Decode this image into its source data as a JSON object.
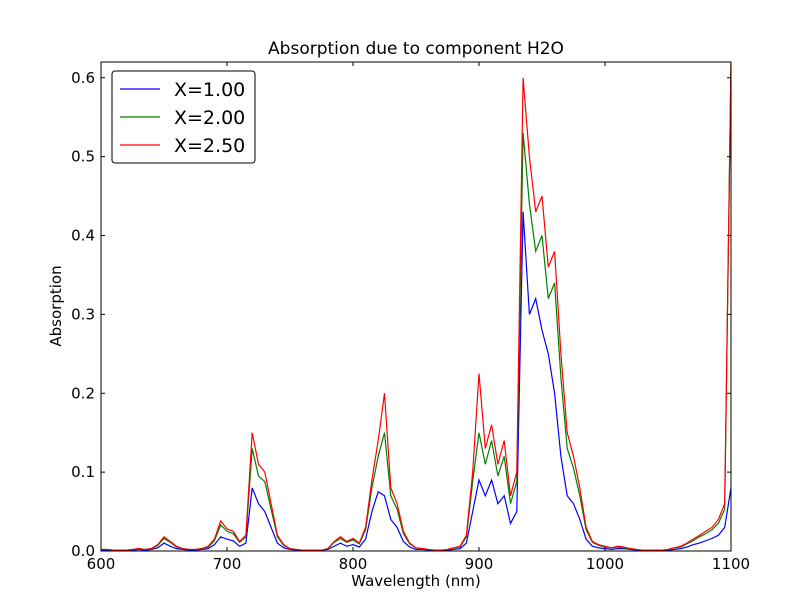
{
  "chart_data": {
    "type": "line",
    "title": "Absorption due to component H2O",
    "x_label": "Wavelength (nm)",
    "y_label": "Absorption",
    "x": [
      600,
      605,
      610,
      615,
      620,
      625,
      630,
      635,
      640,
      645,
      650,
      655,
      660,
      665,
      670,
      675,
      680,
      685,
      690,
      695,
      700,
      705,
      710,
      715,
      720,
      725,
      730,
      735,
      740,
      745,
      750,
      755,
      760,
      765,
      770,
      775,
      780,
      785,
      790,
      795,
      800,
      805,
      810,
      815,
      820,
      825,
      830,
      835,
      840,
      845,
      850,
      855,
      860,
      865,
      870,
      875,
      880,
      885,
      890,
      895,
      900,
      905,
      910,
      915,
      920,
      925,
      930,
      935,
      940,
      945,
      950,
      955,
      960,
      965,
      970,
      975,
      980,
      985,
      990,
      995,
      1000,
      1005,
      1010,
      1015,
      1020,
      1025,
      1030,
      1035,
      1040,
      1045,
      1050,
      1055,
      1060,
      1065,
      1070,
      1075,
      1080,
      1085,
      1090,
      1095,
      1100
    ],
    "series": [
      {
        "name": "X=1.00",
        "color": "#0000ff",
        "values": [
          0.001,
          0.001,
          0.001,
          0.001,
          0.001,
          0.001,
          0.002,
          0.001,
          0.002,
          0.004,
          0.01,
          0.006,
          0.003,
          0.002,
          0.001,
          0.001,
          0.002,
          0.003,
          0.008,
          0.018,
          0.015,
          0.013,
          0.006,
          0.01,
          0.08,
          0.06,
          0.05,
          0.03,
          0.01,
          0.004,
          0.002,
          0.001,
          0.001,
          0.001,
          0.001,
          0.001,
          0.002,
          0.006,
          0.01,
          0.006,
          0.008,
          0.005,
          0.015,
          0.05,
          0.075,
          0.07,
          0.04,
          0.03,
          0.012,
          0.005,
          0.002,
          0.002,
          0.001,
          0.001,
          0.001,
          0.001,
          0.002,
          0.003,
          0.01,
          0.05,
          0.09,
          0.07,
          0.09,
          0.06,
          0.07,
          0.035,
          0.05,
          0.43,
          0.3,
          0.32,
          0.28,
          0.25,
          0.2,
          0.12,
          0.07,
          0.06,
          0.04,
          0.015,
          0.006,
          0.004,
          0.003,
          0.002,
          0.003,
          0.003,
          0.002,
          0.001,
          0.001,
          0.001,
          0.001,
          0.001,
          0.001,
          0.002,
          0.003,
          0.005,
          0.008,
          0.01,
          0.013,
          0.016,
          0.02,
          0.03,
          0.08
        ]
      },
      {
        "name": "X=2.00",
        "color": "#008000",
        "values": [
          0.002,
          0.002,
          0.001,
          0.001,
          0.001,
          0.002,
          0.003,
          0.002,
          0.003,
          0.007,
          0.016,
          0.011,
          0.005,
          0.003,
          0.002,
          0.002,
          0.003,
          0.005,
          0.013,
          0.033,
          0.025,
          0.022,
          0.011,
          0.018,
          0.13,
          0.095,
          0.088,
          0.053,
          0.018,
          0.007,
          0.003,
          0.002,
          0.001,
          0.001,
          0.001,
          0.001,
          0.003,
          0.011,
          0.016,
          0.011,
          0.014,
          0.009,
          0.027,
          0.08,
          0.12,
          0.15,
          0.07,
          0.053,
          0.022,
          0.009,
          0.004,
          0.003,
          0.002,
          0.001,
          0.001,
          0.002,
          0.004,
          0.005,
          0.018,
          0.088,
          0.15,
          0.11,
          0.14,
          0.095,
          0.12,
          0.06,
          0.088,
          0.53,
          0.44,
          0.38,
          0.4,
          0.32,
          0.34,
          0.22,
          0.13,
          0.105,
          0.07,
          0.027,
          0.011,
          0.007,
          0.005,
          0.004,
          0.005,
          0.004,
          0.003,
          0.002,
          0.001,
          0.001,
          0.001,
          0.001,
          0.002,
          0.004,
          0.005,
          0.009,
          0.013,
          0.018,
          0.022,
          0.027,
          0.035,
          0.053,
          0.62
        ]
      },
      {
        "name": "X=2.50",
        "color": "#ff0000",
        "values": [
          0.002,
          0.002,
          0.001,
          0.001,
          0.001,
          0.002,
          0.003,
          0.002,
          0.003,
          0.008,
          0.018,
          0.012,
          0.006,
          0.003,
          0.002,
          0.002,
          0.003,
          0.006,
          0.015,
          0.038,
          0.028,
          0.025,
          0.012,
          0.02,
          0.15,
          0.11,
          0.1,
          0.06,
          0.02,
          0.008,
          0.003,
          0.002,
          0.001,
          0.001,
          0.001,
          0.001,
          0.003,
          0.012,
          0.018,
          0.012,
          0.016,
          0.01,
          0.03,
          0.09,
          0.14,
          0.2,
          0.08,
          0.06,
          0.025,
          0.01,
          0.004,
          0.003,
          0.002,
          0.001,
          0.001,
          0.002,
          0.004,
          0.006,
          0.02,
          0.1,
          0.225,
          0.13,
          0.16,
          0.11,
          0.14,
          0.07,
          0.1,
          0.6,
          0.5,
          0.43,
          0.45,
          0.36,
          0.38,
          0.25,
          0.15,
          0.12,
          0.08,
          0.03,
          0.012,
          0.008,
          0.006,
          0.004,
          0.006,
          0.005,
          0.003,
          0.002,
          0.001,
          0.001,
          0.001,
          0.001,
          0.002,
          0.004,
          0.006,
          0.01,
          0.015,
          0.02,
          0.025,
          0.03,
          0.04,
          0.06,
          0.62
        ]
      }
    ],
    "xlim": [
      600,
      1100
    ],
    "xticks": [
      600,
      700,
      800,
      900,
      1000,
      1100
    ],
    "ylim": [
      0,
      0.62
    ],
    "yticks": [
      {
        "value": 0,
        "label": "0.0"
      },
      0.1,
      0.2,
      0.3,
      0.4,
      0.5,
      0.6
    ],
    "legend": "upper left"
  }
}
